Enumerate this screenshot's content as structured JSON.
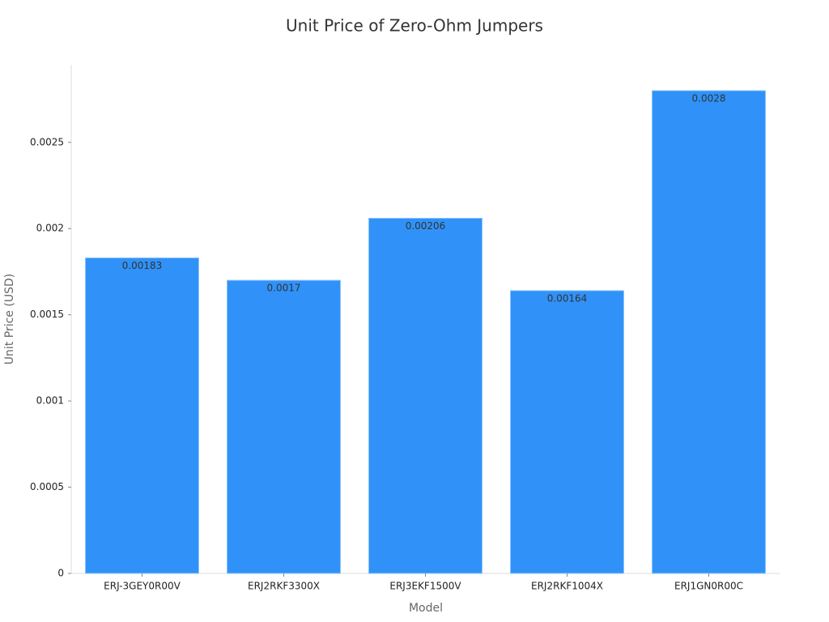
{
  "chart_data": {
    "type": "bar",
    "title": "Unit Price of Zero-Ohm Jumpers",
    "x_label": "Model",
    "y_label": "Unit Price (USD)",
    "categories": [
      "ERJ-3GEY0R00V",
      "ERJ2RKF3300X",
      "ERJ3EKF1500V",
      "ERJ2RKF1004X",
      "ERJ1GN0R00C"
    ],
    "values": [
      0.00183,
      0.0017,
      0.00206,
      0.00164,
      0.0028
    ],
    "color": "#3092f8",
    "ylim": [
      0,
      0.00295
    ],
    "yticks": [
      0,
      0.0005,
      0.001,
      0.0015,
      0.002,
      0.0025
    ],
    "grid": false
  }
}
